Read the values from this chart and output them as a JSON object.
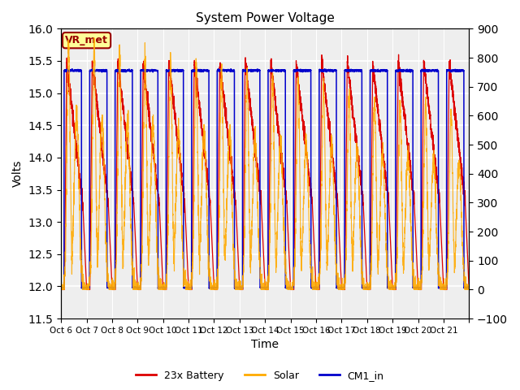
{
  "title": "System Power Voltage",
  "xlabel": "Time",
  "ylabel": "Volts",
  "ylim_left": [
    11.5,
    16.0
  ],
  "ylim_right": [
    -100,
    900
  ],
  "yticks_left": [
    11.5,
    12.0,
    12.5,
    13.0,
    13.5,
    14.0,
    14.5,
    15.0,
    15.5,
    16.0
  ],
  "yticks_right": [
    -100,
    0,
    100,
    200,
    300,
    400,
    500,
    600,
    700,
    800,
    900
  ],
  "xtick_labels": [
    "Oct 6",
    "Oct 7",
    "Oct 8",
    "Oct 9",
    "Oct 10",
    "Oct 11",
    "Oct 12",
    "Oct 13",
    "Oct 14",
    "Oct 15",
    "Oct 16",
    "Oct 17",
    "Oct 18",
    "Oct 19",
    "Oct 20",
    "Oct 21"
  ],
  "n_days": 16,
  "battery_color": "#dd0000",
  "solar_color": "#ffaa00",
  "cm1_color": "#0000cc",
  "vr_met_color": "#990000",
  "vr_met_bg": "#ffff99",
  "background_color": "#eeeeee",
  "grid_color": "#ffffff",
  "legend_entries": [
    "23x Battery",
    "Solar",
    "CM1_in"
  ],
  "annotation_text": "VR_met",
  "battery_base": 11.95,
  "battery_peak": 15.5,
  "solar_peak": 850,
  "cm1_base": 11.98,
  "cm1_peak": 15.35
}
